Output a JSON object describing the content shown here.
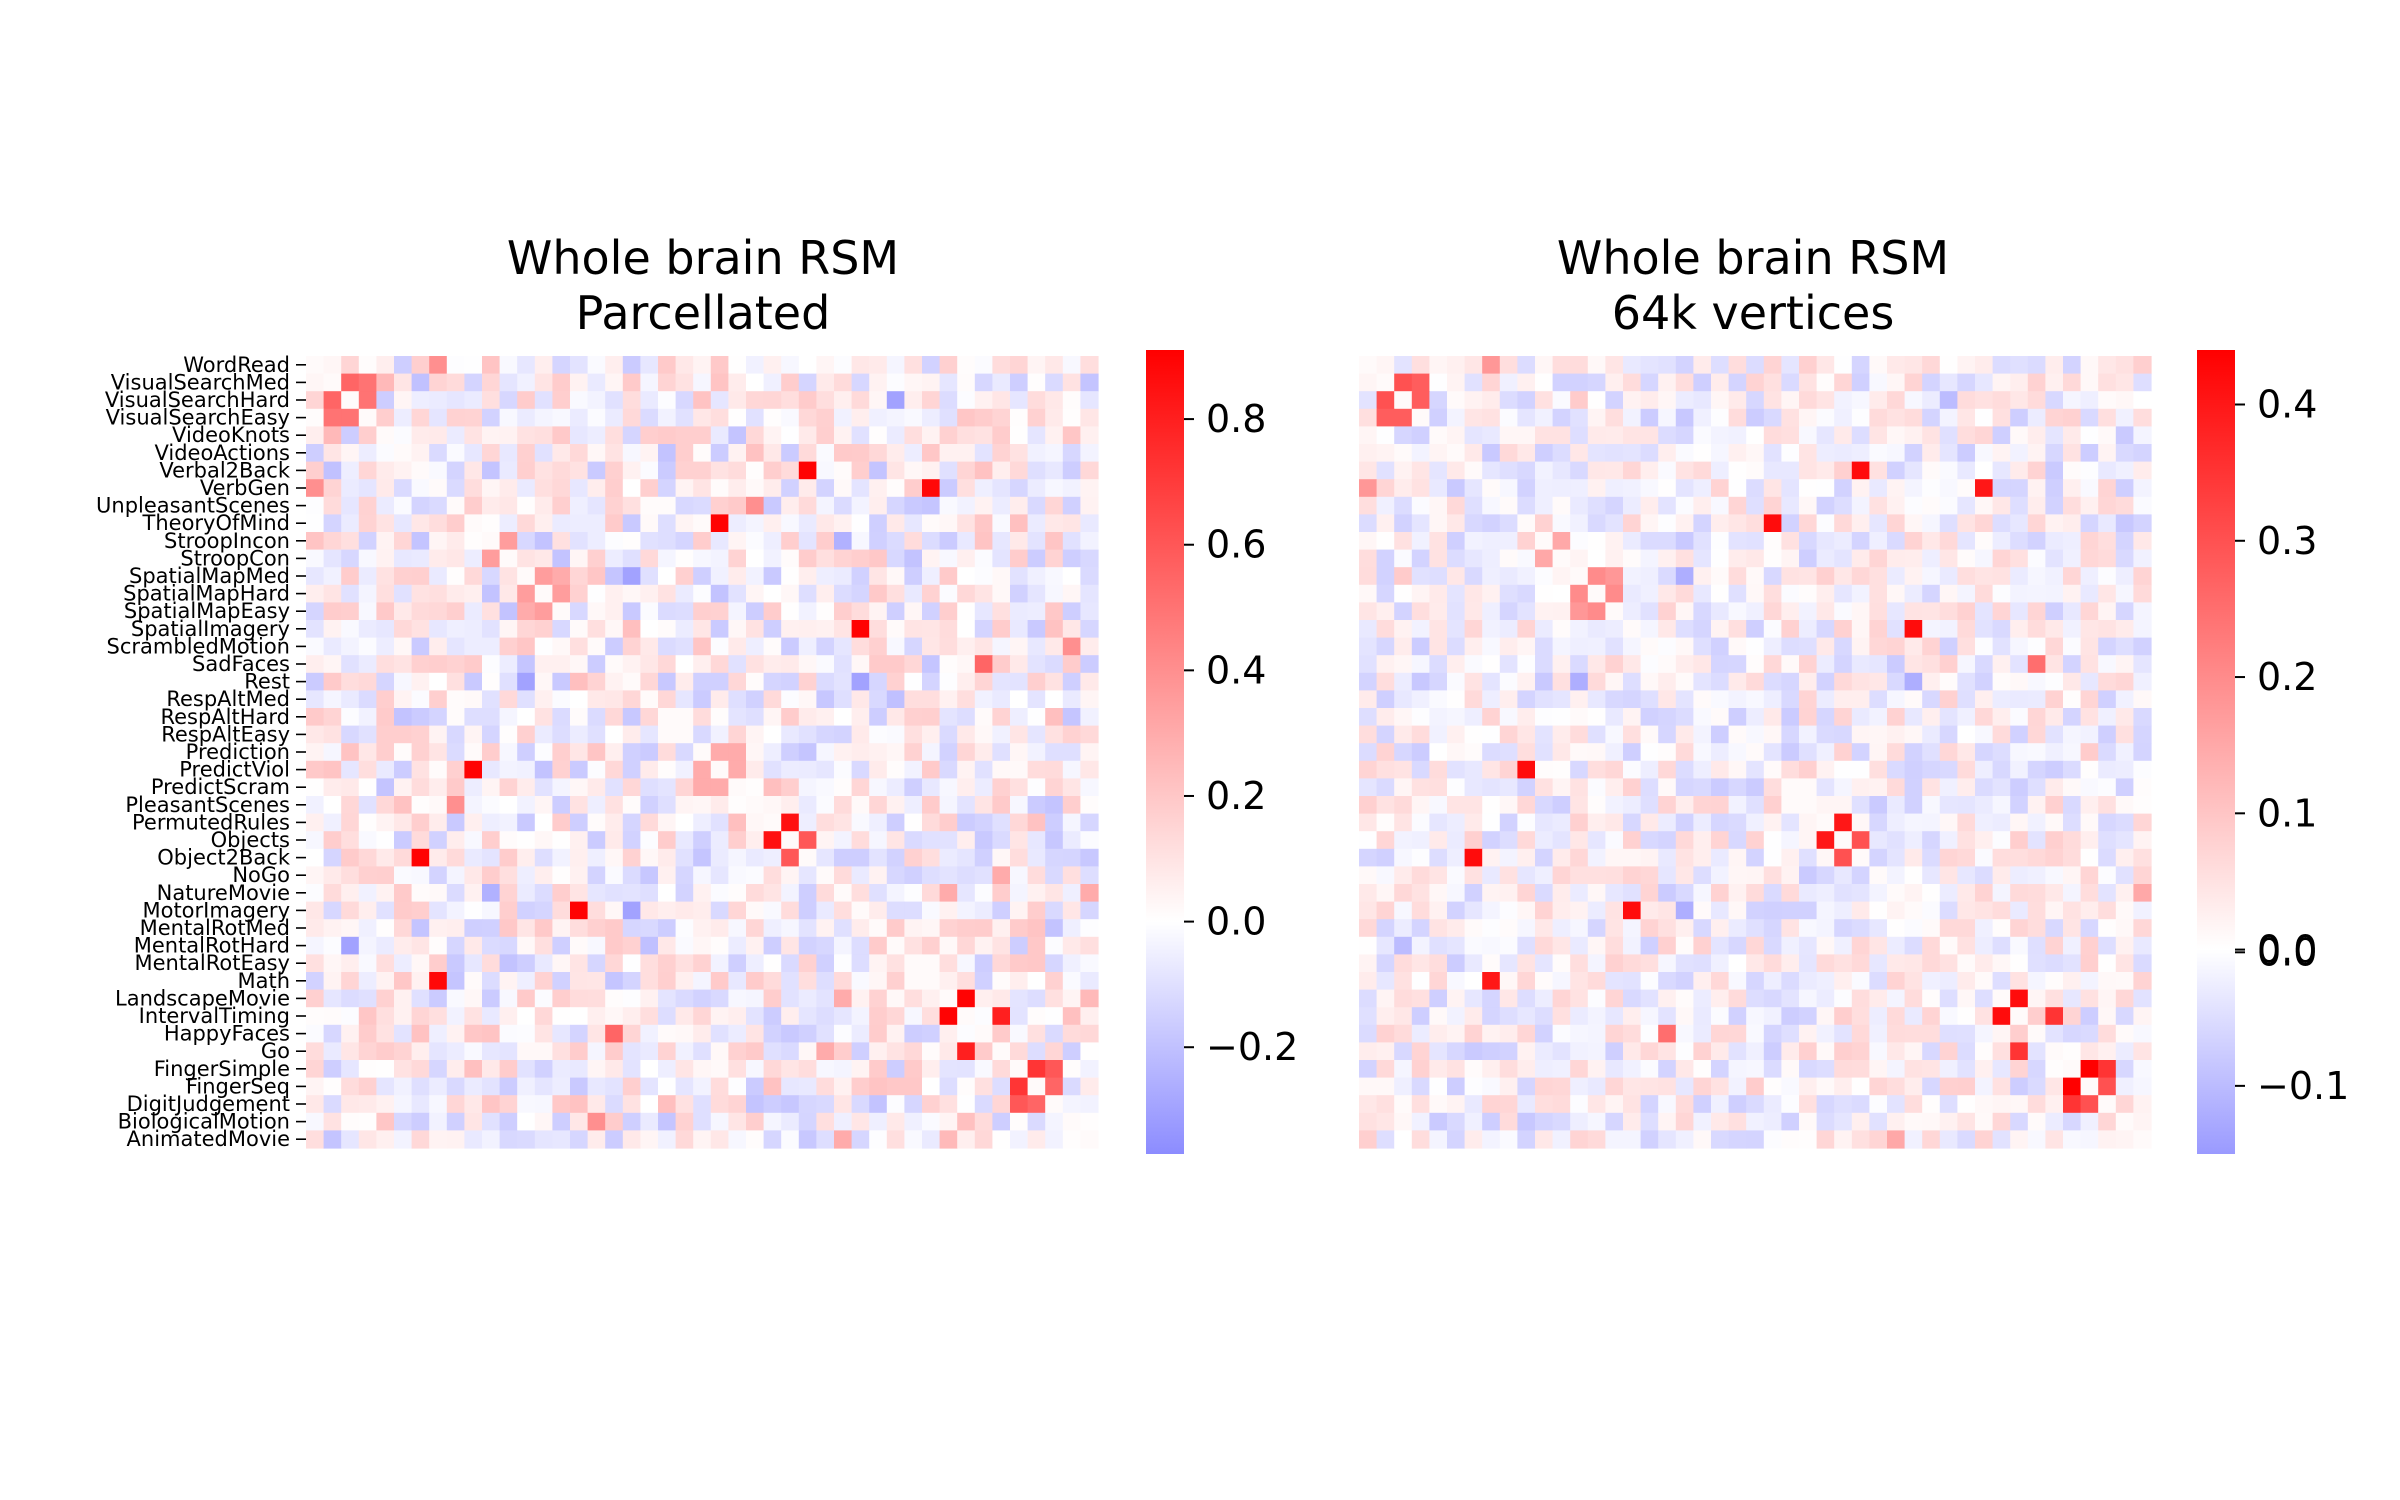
{
  "chart_data": [
    {
      "type": "heatmap",
      "title_lines": [
        "Whole brain RSM",
        "Parcellated"
      ],
      "row_labels": [
        "WordRead",
        "VisualSearchMed",
        "VisualSearchHard",
        "VisualSearchEasy",
        "VideoKnots",
        "VideoActions",
        "Verbal2Back",
        "VerbGen",
        "UnpleasantScenes",
        "TheoryOfMind",
        "StroopIncon",
        "StroopCon",
        "SpatialMapMed",
        "SpatialMapHard",
        "SpatialMapEasy",
        "SpatialImagery",
        "ScrambledMotion",
        "SadFaces",
        "Rest",
        "RespAltMed",
        "RespAltHard",
        "RespAltEasy",
        "Prediction",
        "PredictViol",
        "PredictScram",
        "PleasantScenes",
        "PermutedRules",
        "Objects",
        "Object2Back",
        "NoGo",
        "NatureMovie",
        "MotorImagery",
        "MentalRotMed",
        "MentalRotHard",
        "MentalRotEasy",
        "Math",
        "LandscapeMovie",
        "IntervalTiming",
        "HappyFaces",
        "Go",
        "FingerSimple",
        "FingerSeq",
        "DigitJudgement",
        "BiologicalMotion",
        "AnimatedMovie"
      ],
      "row_order": "top-to-bottom",
      "colorbar": {
        "min": -0.37,
        "max": 0.91,
        "center": 0.0,
        "ticks": [
          -0.2,
          0.0,
          0.2,
          0.4,
          0.6,
          0.8
        ],
        "tick_labels": [
          "−0.2",
          "0.0",
          "0.2",
          "0.4",
          "0.6",
          "0.8"
        ],
        "colors": {
          "low": "#8c8cff",
          "mid": "#ffffff",
          "high": "#ff0000"
        }
      },
      "pairs": [
        {
          "a": "VisualSearchMed",
          "b": "VisualSearchHard",
          "value": 0.55
        },
        {
          "a": "VisualSearchMed",
          "b": "VisualSearchEasy",
          "value": 0.5
        },
        {
          "a": "VisualSearchHard",
          "b": "VisualSearchEasy",
          "value": 0.5
        },
        {
          "a": "VisualSearchMed",
          "b": "VideoKnots",
          "value": 0.25
        },
        {
          "a": "Verbal2Back",
          "b": "Object2Back",
          "value": 0.9
        },
        {
          "a": "VerbGen",
          "b": "Math",
          "value": 0.88
        },
        {
          "a": "TheoryOfMind",
          "b": "PredictViol",
          "value": 0.9
        },
        {
          "a": "UnpleasantScenes",
          "b": "PleasantScenes",
          "value": 0.4
        },
        {
          "a": "StroopIncon",
          "b": "StroopCon",
          "value": 0.35
        },
        {
          "a": "SpatialMapMed",
          "b": "SpatialMapHard",
          "value": 0.35
        },
        {
          "a": "SpatialMapMed",
          "b": "SpatialMapEasy",
          "value": 0.3
        },
        {
          "a": "SpatialMapHard",
          "b": "SpatialMapEasy",
          "value": 0.35
        },
        {
          "a": "SpatialImagery",
          "b": "MotorImagery",
          "value": 0.9
        },
        {
          "a": "SadFaces",
          "b": "HappyFaces",
          "value": 0.55
        },
        {
          "a": "ScrambledMotion",
          "b": "BiologicalMotion",
          "value": 0.4
        },
        {
          "a": "Prediction",
          "b": "PredictViol",
          "value": 0.3
        },
        {
          "a": "Prediction",
          "b": "PredictScram",
          "value": 0.3
        },
        {
          "a": "PredictViol",
          "b": "PredictScram",
          "value": 0.3
        },
        {
          "a": "Objects",
          "b": "Object2Back",
          "value": 0.6
        },
        {
          "a": "PermutedRules",
          "b": "Objects",
          "value": 0.85
        },
        {
          "a": "NoGo",
          "b": "Go",
          "value": 0.3
        },
        {
          "a": "NatureMovie",
          "b": "LandscapeMovie",
          "value": 0.3
        },
        {
          "a": "LandscapeMovie",
          "b": "IntervalTiming",
          "value": 0.9
        },
        {
          "a": "IntervalTiming",
          "b": "Go",
          "value": 0.8
        },
        {
          "a": "FingerSimple",
          "b": "FingerSeq",
          "value": 0.72
        },
        {
          "a": "FingerSimple",
          "b": "DigitJudgement",
          "value": 0.6
        },
        {
          "a": "FingerSeq",
          "b": "DigitJudgement",
          "value": 0.55
        },
        {
          "a": "WordRead",
          "b": "VerbGen",
          "value": 0.4
        },
        {
          "a": "Rest",
          "b": "MotorImagery",
          "value": -0.3
        },
        {
          "a": "Rest",
          "b": "SpatialMapMed",
          "value": -0.3
        },
        {
          "a": "VisualSearchHard",
          "b": "MentalRotHard",
          "value": -0.3
        },
        {
          "a": "StroopIncon",
          "b": "NatureMovie",
          "value": -0.25
        },
        {
          "a": "Verbal2Back",
          "b": "VisualSearchMed",
          "value": -0.2
        },
        {
          "a": "AnimatedMovie",
          "b": "NatureMovie",
          "value": 0.3
        },
        {
          "a": "AnimatedMovie",
          "b": "LandscapeMovie",
          "value": 0.25
        }
      ]
    },
    {
      "type": "heatmap",
      "title_lines": [
        "Whole brain RSM",
        "64k vertices"
      ],
      "row_labels": "same-as-panel-1",
      "colorbar": {
        "min": -0.15,
        "max": 0.44,
        "center": 0.0,
        "ticks": [
          -0.1,
          0.0,
          0.0,
          0.1,
          0.2,
          0.3,
          0.4
        ],
        "tick_labels": [
          "−0.1",
          "0.0",
          "0.0",
          "0.1",
          "0.2",
          "0.3",
          "0.4"
        ],
        "tick_positions": [
          -0.1,
          -0.002,
          0.0,
          0.1,
          0.2,
          0.3,
          0.4
        ],
        "colors": {
          "low": "#9a9aff",
          "mid": "#ffffff",
          "high": "#ff0000"
        }
      },
      "pairs": [
        {
          "a": "VisualSearchMed",
          "b": "VisualSearchHard",
          "value": 0.3
        },
        {
          "a": "VisualSearchMed",
          "b": "VisualSearchEasy",
          "value": 0.28
        },
        {
          "a": "VisualSearchHard",
          "b": "VisualSearchEasy",
          "value": 0.28
        },
        {
          "a": "Verbal2Back",
          "b": "Object2Back",
          "value": 0.42
        },
        {
          "a": "VerbGen",
          "b": "Math",
          "value": 0.4
        },
        {
          "a": "TheoryOfMind",
          "b": "PredictViol",
          "value": 0.42
        },
        {
          "a": "StroopIncon",
          "b": "StroopCon",
          "value": 0.15
        },
        {
          "a": "SpatialMapMed",
          "b": "SpatialMapHard",
          "value": 0.2
        },
        {
          "a": "SpatialMapMed",
          "b": "SpatialMapEasy",
          "value": 0.18
        },
        {
          "a": "SpatialMapHard",
          "b": "SpatialMapEasy",
          "value": 0.2
        },
        {
          "a": "SpatialImagery",
          "b": "MotorImagery",
          "value": 0.42
        },
        {
          "a": "SadFaces",
          "b": "HappyFaces",
          "value": 0.25
        },
        {
          "a": "PermutedRules",
          "b": "Objects",
          "value": 0.4
        },
        {
          "a": "Objects",
          "b": "Object2Back",
          "value": 0.3
        },
        {
          "a": "LandscapeMovie",
          "b": "IntervalTiming",
          "value": 0.42
        },
        {
          "a": "IntervalTiming",
          "b": "Go",
          "value": 0.35
        },
        {
          "a": "FingerSimple",
          "b": "FingerSeq",
          "value": 0.44
        },
        {
          "a": "FingerSimple",
          "b": "DigitJudgement",
          "value": 0.35
        },
        {
          "a": "FingerSeq",
          "b": "DigitJudgement",
          "value": 0.3
        },
        {
          "a": "Rest",
          "b": "MotorImagery",
          "value": -0.12
        },
        {
          "a": "Rest",
          "b": "SpatialMapMed",
          "value": -0.12
        },
        {
          "a": "VisualSearchHard",
          "b": "MentalRotHard",
          "value": -0.1
        },
        {
          "a": "AnimatedMovie",
          "b": "NatureMovie",
          "value": 0.15
        },
        {
          "a": "WordRead",
          "b": "VerbGen",
          "value": 0.18
        }
      ]
    }
  ]
}
